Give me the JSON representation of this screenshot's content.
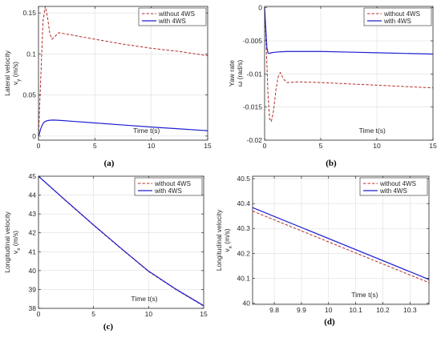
{
  "colors": {
    "without": "#b2302a",
    "with": "#1f1fd1"
  },
  "chart_data": [
    {
      "panel": "(a)",
      "type": "line",
      "xlabel": "Time t(s)",
      "ylabel": [
        "Lateral velocity",
        "v_y (m/s)"
      ],
      "xlim": [
        0,
        15
      ],
      "ylim": [
        -0.005,
        0.158
      ],
      "xticks": [
        0,
        5,
        10,
        15
      ],
      "xtick_labels": [
        "0",
        "5",
        "10",
        "15"
      ],
      "yticks": [
        0,
        0.05,
        0.1,
        0.15
      ],
      "ytick_labels": [
        "0",
        "0.05",
        "0.1",
        "0.15"
      ],
      "grid": true,
      "legend_position": "top-right",
      "series": [
        {
          "name": "without 4WS",
          "style": "dashed",
          "x": [
            0,
            0.2,
            0.4,
            0.6,
            0.8,
            1.0,
            1.2,
            1.5,
            1.8,
            2.2,
            3,
            5,
            7.5,
            10,
            12.5,
            15
          ],
          "y": [
            0,
            0.07,
            0.14,
            0.158,
            0.145,
            0.125,
            0.118,
            0.122,
            0.126,
            0.125,
            0.123,
            0.118,
            0.112,
            0.107,
            0.103,
            0.098
          ]
        },
        {
          "name": "with 4WS",
          "style": "solid",
          "x": [
            0,
            0.1,
            0.2,
            0.35,
            0.5,
            0.7,
            1.0,
            1.3,
            2,
            3,
            5,
            7.5,
            10,
            12.5,
            15
          ],
          "y": [
            0,
            0.004,
            0.009,
            0.014,
            0.017,
            0.0185,
            0.0193,
            0.0195,
            0.019,
            0.018,
            0.016,
            0.0135,
            0.011,
            0.0088,
            0.0065
          ]
        }
      ]
    },
    {
      "panel": "(b)",
      "type": "line",
      "xlabel": "Time t(s)",
      "ylabel": [
        "Yaw rate",
        "ω (rad/s)"
      ],
      "xlim": [
        0,
        15
      ],
      "ylim": [
        -0.02,
        0.0002
      ],
      "xticks": [
        0,
        5,
        10,
        15
      ],
      "xtick_labels": [
        "0",
        "5",
        "10",
        "15"
      ],
      "yticks": [
        -0.02,
        -0.015,
        -0.01,
        -0.005,
        0
      ],
      "ytick_labels": [
        "-0.02",
        "-0.015",
        "-0.01",
        "-0.005",
        "0"
      ],
      "grid": true,
      "legend_position": "top-right",
      "series": [
        {
          "name": "without 4WS",
          "style": "dashed",
          "x": [
            0,
            0.15,
            0.3,
            0.45,
            0.6,
            0.8,
            1.0,
            1.2,
            1.4,
            1.7,
            2.0,
            3,
            5,
            7.5,
            10,
            12.5,
            15
          ],
          "y": [
            0,
            -0.006,
            -0.013,
            -0.0168,
            -0.0172,
            -0.0155,
            -0.0125,
            -0.0105,
            -0.0098,
            -0.0108,
            -0.0113,
            -0.0112,
            -0.0113,
            -0.0115,
            -0.0117,
            -0.0119,
            -0.0121
          ]
        },
        {
          "name": "with 4WS",
          "style": "solid",
          "x": [
            0,
            0.1,
            0.2,
            0.3,
            0.4,
            0.6,
            1.0,
            2,
            5,
            7.5,
            10,
            12.5,
            15
          ],
          "y": [
            0,
            -0.003,
            -0.006,
            -0.0068,
            -0.0069,
            -0.0068,
            -0.0067,
            -0.0066,
            -0.0066,
            -0.0067,
            -0.0068,
            -0.0069,
            -0.007
          ]
        }
      ]
    },
    {
      "panel": "(c)",
      "type": "line",
      "xlabel": "Time t(s)",
      "ylabel": [
        "Longitudinal velocity",
        "v_x (m/s)"
      ],
      "xlim": [
        0,
        15
      ],
      "ylim": [
        38,
        45
      ],
      "xticks": [
        0,
        5,
        10,
        15
      ],
      "xtick_labels": [
        "0",
        "5",
        "10",
        "15"
      ],
      "yticks": [
        38,
        39,
        40,
        41,
        42,
        43,
        44,
        45
      ],
      "ytick_labels": [
        "38",
        "39",
        "40",
        "41",
        "42",
        "43",
        "44",
        "45"
      ],
      "grid": true,
      "legend_position": "top-right",
      "series": [
        {
          "name": "without 4WS",
          "style": "dashed",
          "x": [
            0,
            2.5,
            5,
            7.5,
            10,
            12.5,
            15
          ],
          "y": [
            45,
            43.68,
            42.4,
            41.16,
            39.95,
            38.99,
            38.12
          ]
        },
        {
          "name": "with 4WS",
          "style": "solid",
          "x": [
            0,
            2.5,
            5,
            7.5,
            10,
            12.5,
            15
          ],
          "y": [
            45,
            43.7,
            42.42,
            41.18,
            39.97,
            39.01,
            38.14
          ]
        }
      ]
    },
    {
      "panel": "(d)",
      "type": "line",
      "xlabel": "Time t(s)",
      "ylabel": [
        "Longitudinal velocity",
        "v_x (m/s)"
      ],
      "xlim": [
        9.72,
        10.37
      ],
      "ylim": [
        39.995,
        40.51
      ],
      "xticks": [
        9.8,
        9.9,
        10,
        10.1,
        10.2,
        10.3
      ],
      "xtick_labels": [
        "9.8",
        "9.9",
        "10",
        "10.1",
        "10.2",
        "10.3"
      ],
      "yticks": [
        40,
        40.1,
        40.2,
        40.3,
        40.4,
        40.5
      ],
      "ytick_labels": [
        "40",
        "40.1",
        "40.2",
        "40.3",
        "40.4",
        "40.5"
      ],
      "grid": true,
      "legend_position": "top-right",
      "series": [
        {
          "name": "without 4WS",
          "style": "dashed",
          "x": [
            9.72,
            10.37
          ],
          "y": [
            40.37,
            40.082
          ]
        },
        {
          "name": "with 4WS",
          "style": "solid",
          "x": [
            9.72,
            10.37
          ],
          "y": [
            40.384,
            40.095
          ]
        }
      ]
    }
  ]
}
